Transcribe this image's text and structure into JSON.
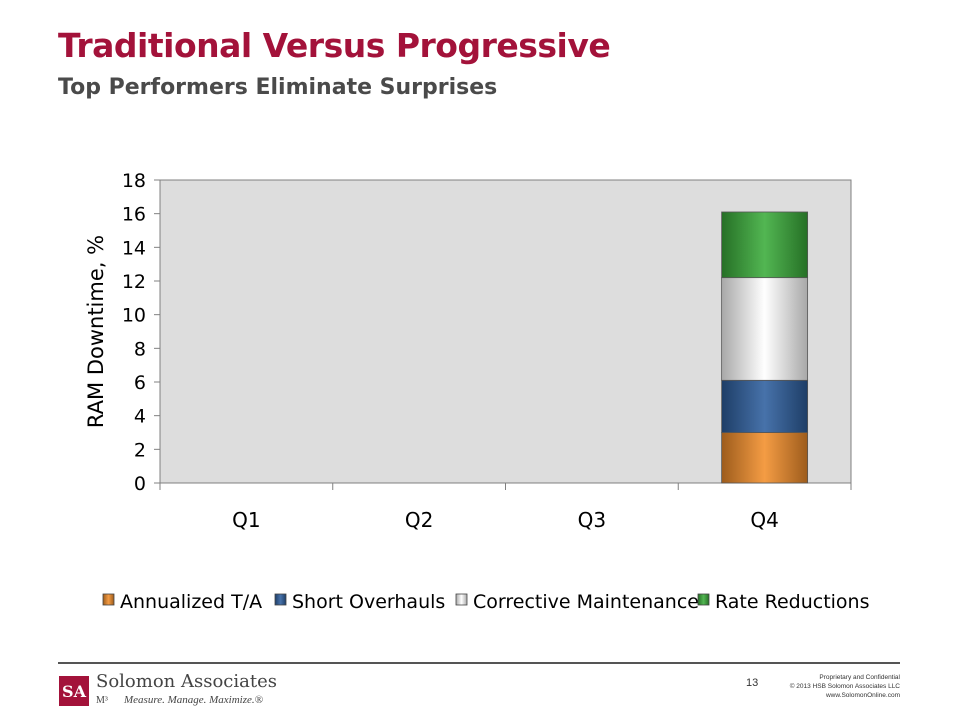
{
  "slide": {
    "title": "Traditional Versus Progressive",
    "subtitle": "Top Performers Eliminate Surprises"
  },
  "chart_data": {
    "type": "bar",
    "stacked": true,
    "categories": [
      "Q1",
      "Q2",
      "Q3",
      "Q4"
    ],
    "series": [
      {
        "name": "Annualized T/A",
        "values": [
          0,
          0,
          0,
          3.0
        ],
        "color": "#f28e2b"
      },
      {
        "name": "Short Overhauls",
        "values": [
          0,
          0,
          0,
          3.1
        ],
        "color": "#2e5f9e"
      },
      {
        "name": "Corrective Maintenance",
        "values": [
          0,
          0,
          0,
          6.1
        ],
        "color": "#f2f2f2"
      },
      {
        "name": "Rate Reductions",
        "values": [
          0,
          0,
          0,
          3.9
        ],
        "color": "#3aac3a"
      }
    ],
    "ylabel": "RAM Downtime, %",
    "xlabel": "",
    "ylim": [
      0,
      18
    ],
    "yticks": [
      0,
      2,
      4,
      6,
      8,
      10,
      12,
      14,
      16,
      18
    ],
    "plot_background": "#dddddd",
    "grid": false,
    "legend_position": "bottom"
  },
  "footer": {
    "logo_text": "SA",
    "company_name": "Solomon Associates",
    "mark": "M³",
    "tagline": "Measure. Manage. Maximize.®",
    "page_number": "13",
    "legal_lines": [
      "Proprietary and Confidential",
      "© 2013 HSB Solomon Associates LLC",
      "www.SolomonOnline.com"
    ],
    "accent_color": "#a3123a"
  }
}
